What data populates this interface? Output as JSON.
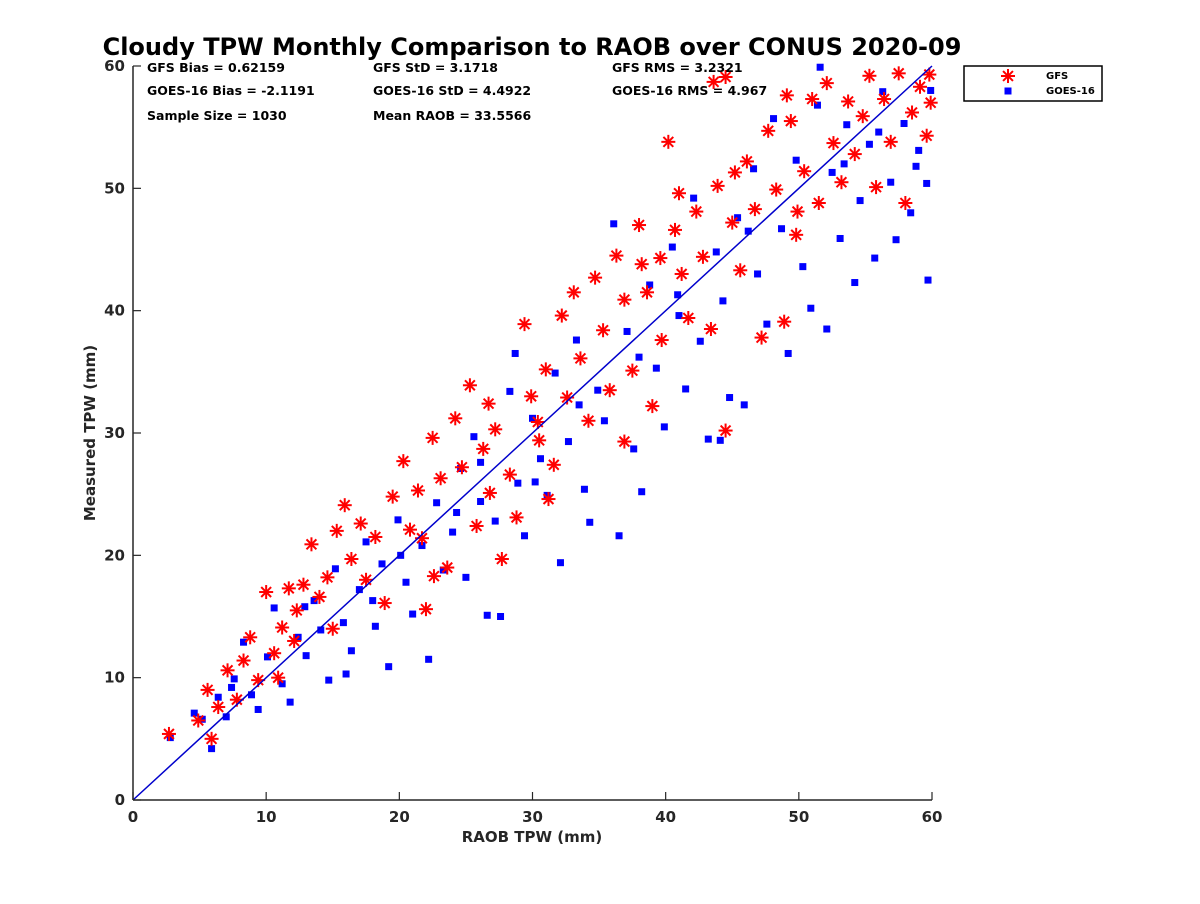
{
  "chart_data": {
    "type": "scatter",
    "title": "Cloudy TPW Monthly Comparison to RAOB over CONUS 2020-09",
    "xlabel": "RAOB TPW (mm)",
    "ylabel": "Measured TPW (mm)",
    "xlim": [
      0,
      60
    ],
    "ylim": [
      0,
      60
    ],
    "xticks": [
      "0",
      "10",
      "20",
      "30",
      "40",
      "50",
      "60"
    ],
    "yticks": [
      "0",
      "10",
      "20",
      "30",
      "40",
      "50",
      "60"
    ],
    "grid": false,
    "legend_position": "top-right, outside plot",
    "one_to_one_line": {
      "from": [
        0,
        0
      ],
      "to": [
        60,
        60
      ],
      "color": "#0000CC"
    },
    "stats": {
      "gfs_bias": "GFS Bias = 0.62159",
      "gfs_std": "GFS StD = 3.1718",
      "gfs_rms": "GFS RMS = 3.2321",
      "goes_bias": "GOES-16 Bias = -2.1191",
      "goes_std": "GOES-16 StD = 4.4922",
      "goes_rms": "GOES-16 RMS = 4.967",
      "sample_size": "Sample Size = 1030",
      "mean_raob": "Mean RAOB = 33.5566"
    },
    "series": [
      {
        "name": "GFS",
        "marker": "asterisk",
        "color": "#FF0000",
        "points": [
          [
            2.7,
            5.4
          ],
          [
            4.9,
            6.5
          ],
          [
            5.6,
            9.0
          ],
          [
            5.9,
            5.0
          ],
          [
            6.4,
            7.6
          ],
          [
            7.1,
            10.6
          ],
          [
            7.8,
            8.2
          ],
          [
            8.3,
            11.4
          ],
          [
            8.8,
            13.3
          ],
          [
            9.4,
            9.8
          ],
          [
            10.0,
            17.0
          ],
          [
            10.6,
            12.0
          ],
          [
            11.2,
            14.1
          ],
          [
            11.7,
            17.3
          ],
          [
            12.3,
            15.5
          ],
          [
            12.8,
            17.6
          ],
          [
            13.4,
            20.9
          ],
          [
            14.0,
            16.6
          ],
          [
            14.6,
            18.2
          ],
          [
            15.3,
            22.0
          ],
          [
            15.9,
            24.1
          ],
          [
            16.4,
            19.7
          ],
          [
            17.1,
            22.6
          ],
          [
            17.5,
            18.0
          ],
          [
            18.2,
            21.5
          ],
          [
            18.9,
            16.1
          ],
          [
            19.5,
            24.8
          ],
          [
            20.3,
            27.7
          ],
          [
            20.8,
            22.1
          ],
          [
            21.4,
            25.3
          ],
          [
            22.0,
            15.6
          ],
          [
            22.5,
            29.6
          ],
          [
            23.1,
            26.3
          ],
          [
            23.6,
            19.0
          ],
          [
            24.2,
            31.2
          ],
          [
            24.7,
            27.2
          ],
          [
            25.3,
            33.9
          ],
          [
            25.8,
            22.4
          ],
          [
            26.3,
            28.7
          ],
          [
            26.7,
            32.4
          ],
          [
            27.2,
            30.3
          ],
          [
            27.7,
            19.7
          ],
          [
            28.3,
            26.6
          ],
          [
            28.8,
            23.1
          ],
          [
            29.4,
            38.9
          ],
          [
            29.9,
            33.0
          ],
          [
            30.5,
            29.4
          ],
          [
            31.0,
            35.2
          ],
          [
            31.6,
            27.4
          ],
          [
            32.2,
            39.6
          ],
          [
            32.6,
            32.9
          ],
          [
            33.1,
            41.5
          ],
          [
            33.6,
            36.1
          ],
          [
            34.2,
            31.0
          ],
          [
            34.7,
            42.7
          ],
          [
            35.3,
            38.4
          ],
          [
            35.8,
            33.5
          ],
          [
            36.3,
            44.5
          ],
          [
            36.9,
            40.9
          ],
          [
            37.5,
            35.1
          ],
          [
            38.0,
            47.0
          ],
          [
            38.6,
            41.5
          ],
          [
            39.0,
            32.2
          ],
          [
            39.6,
            44.3
          ],
          [
            40.2,
            53.8
          ],
          [
            40.7,
            46.6
          ],
          [
            41.2,
            43.0
          ],
          [
            41.7,
            39.4
          ],
          [
            42.3,
            48.1
          ],
          [
            42.8,
            44.4
          ],
          [
            43.4,
            38.5
          ],
          [
            43.9,
            50.2
          ],
          [
            44.5,
            30.2
          ],
          [
            45.0,
            47.2
          ],
          [
            45.6,
            43.3
          ],
          [
            46.1,
            52.2
          ],
          [
            46.7,
            48.3
          ],
          [
            47.2,
            37.8
          ],
          [
            47.7,
            54.7
          ],
          [
            48.3,
            49.9
          ],
          [
            48.9,
            39.1
          ],
          [
            49.4,
            55.5
          ],
          [
            49.8,
            46.2
          ],
          [
            50.4,
            51.4
          ],
          [
            51.0,
            57.3
          ],
          [
            51.5,
            48.8
          ],
          [
            52.1,
            58.6
          ],
          [
            52.6,
            53.7
          ],
          [
            53.2,
            50.5
          ],
          [
            53.7,
            57.1
          ],
          [
            54.2,
            52.8
          ],
          [
            54.8,
            55.9
          ],
          [
            55.3,
            59.2
          ],
          [
            55.8,
            50.1
          ],
          [
            56.4,
            57.3
          ],
          [
            56.9,
            53.8
          ],
          [
            57.5,
            59.4
          ],
          [
            58.0,
            48.8
          ],
          [
            58.5,
            56.2
          ],
          [
            59.1,
            58.3
          ],
          [
            59.6,
            54.3
          ],
          [
            59.8,
            59.3
          ],
          [
            59.9,
            57.0
          ],
          [
            41.0,
            49.6
          ],
          [
            43.6,
            58.7
          ],
          [
            44.5,
            59.1
          ],
          [
            45.2,
            51.3
          ],
          [
            49.1,
            57.6
          ],
          [
            36.9,
            29.3
          ],
          [
            12.1,
            13.0
          ],
          [
            15.0,
            14.0
          ],
          [
            22.6,
            18.3
          ],
          [
            31.2,
            24.6
          ],
          [
            26.8,
            25.1
          ],
          [
            39.7,
            37.6
          ],
          [
            21.7,
            21.4
          ],
          [
            30.4,
            30.9
          ],
          [
            10.9,
            10.0
          ],
          [
            38.2,
            43.8
          ],
          [
            49.9,
            48.1
          ]
        ]
      },
      {
        "name": "GOES-16",
        "marker": "square",
        "color": "#0000FF",
        "points": [
          [
            2.8,
            5.1
          ],
          [
            4.6,
            7.1
          ],
          [
            5.2,
            6.6
          ],
          [
            5.9,
            4.2
          ],
          [
            6.4,
            8.4
          ],
          [
            7.0,
            6.8
          ],
          [
            7.6,
            9.9
          ],
          [
            8.3,
            12.9
          ],
          [
            8.9,
            8.6
          ],
          [
            9.4,
            7.4
          ],
          [
            10.1,
            11.7
          ],
          [
            10.6,
            15.7
          ],
          [
            11.2,
            9.5
          ],
          [
            11.8,
            8.0
          ],
          [
            12.4,
            13.3
          ],
          [
            13.0,
            11.8
          ],
          [
            13.6,
            16.3
          ],
          [
            14.1,
            13.9
          ],
          [
            14.7,
            9.8
          ],
          [
            15.2,
            18.9
          ],
          [
            15.8,
            14.5
          ],
          [
            16.4,
            12.2
          ],
          [
            17.0,
            17.2
          ],
          [
            17.5,
            21.1
          ],
          [
            18.2,
            14.2
          ],
          [
            18.7,
            19.3
          ],
          [
            19.2,
            10.9
          ],
          [
            19.9,
            22.9
          ],
          [
            20.5,
            17.8
          ],
          [
            21.0,
            15.2
          ],
          [
            21.7,
            20.8
          ],
          [
            22.2,
            11.5
          ],
          [
            22.8,
            24.3
          ],
          [
            23.3,
            18.8
          ],
          [
            24.0,
            21.9
          ],
          [
            24.6,
            27.1
          ],
          [
            25.0,
            18.2
          ],
          [
            25.6,
            29.7
          ],
          [
            26.1,
            24.4
          ],
          [
            26.6,
            15.1
          ],
          [
            27.2,
            22.8
          ],
          [
            27.6,
            15.0
          ],
          [
            28.3,
            33.4
          ],
          [
            28.9,
            25.9
          ],
          [
            29.4,
            21.6
          ],
          [
            30.0,
            31.2
          ],
          [
            30.6,
            27.9
          ],
          [
            31.1,
            24.9
          ],
          [
            31.7,
            34.9
          ],
          [
            32.1,
            19.4
          ],
          [
            32.7,
            29.3
          ],
          [
            33.3,
            37.6
          ],
          [
            33.9,
            25.4
          ],
          [
            34.3,
            22.7
          ],
          [
            34.9,
            33.5
          ],
          [
            35.4,
            31.0
          ],
          [
            36.1,
            47.1
          ],
          [
            36.5,
            21.6
          ],
          [
            37.1,
            38.3
          ],
          [
            37.6,
            28.7
          ],
          [
            38.2,
            25.2
          ],
          [
            38.8,
            42.1
          ],
          [
            39.3,
            35.3
          ],
          [
            39.9,
            30.5
          ],
          [
            40.5,
            45.2
          ],
          [
            41.0,
            39.6
          ],
          [
            41.5,
            33.6
          ],
          [
            42.1,
            49.2
          ],
          [
            42.6,
            37.5
          ],
          [
            43.2,
            29.5
          ],
          [
            43.8,
            44.8
          ],
          [
            44.3,
            40.8
          ],
          [
            44.8,
            32.9
          ],
          [
            45.4,
            47.6
          ],
          [
            45.9,
            32.3
          ],
          [
            46.6,
            51.6
          ],
          [
            46.9,
            43.0
          ],
          [
            47.6,
            38.9
          ],
          [
            48.1,
            55.7
          ],
          [
            48.7,
            46.7
          ],
          [
            49.2,
            36.5
          ],
          [
            49.8,
            52.3
          ],
          [
            50.3,
            43.6
          ],
          [
            50.9,
            40.2
          ],
          [
            51.4,
            56.8
          ],
          [
            51.6,
            59.9
          ],
          [
            52.1,
            38.5
          ],
          [
            52.5,
            51.3
          ],
          [
            53.1,
            45.9
          ],
          [
            53.6,
            55.2
          ],
          [
            54.2,
            42.3
          ],
          [
            54.6,
            49.0
          ],
          [
            55.3,
            53.6
          ],
          [
            55.7,
            44.3
          ],
          [
            56.3,
            57.9
          ],
          [
            56.9,
            50.5
          ],
          [
            57.3,
            45.8
          ],
          [
            57.9,
            55.3
          ],
          [
            58.4,
            48.0
          ],
          [
            59.0,
            53.1
          ],
          [
            59.6,
            50.4
          ],
          [
            59.7,
            42.5
          ],
          [
            59.9,
            58.0
          ],
          [
            58.8,
            51.8
          ],
          [
            28.7,
            36.5
          ],
          [
            7.4,
            9.2
          ],
          [
            12.9,
            15.8
          ],
          [
            16.0,
            10.3
          ],
          [
            20.1,
            20.0
          ],
          [
            24.3,
            23.5
          ],
          [
            26.1,
            27.6
          ],
          [
            33.5,
            32.3
          ],
          [
            38.0,
            36.2
          ],
          [
            40.9,
            41.3
          ],
          [
            46.2,
            46.5
          ],
          [
            53.4,
            52.0
          ],
          [
            56.0,
            54.6
          ],
          [
            18.0,
            16.3
          ],
          [
            30.2,
            26.0
          ],
          [
            44.1,
            29.4
          ]
        ]
      }
    ]
  }
}
